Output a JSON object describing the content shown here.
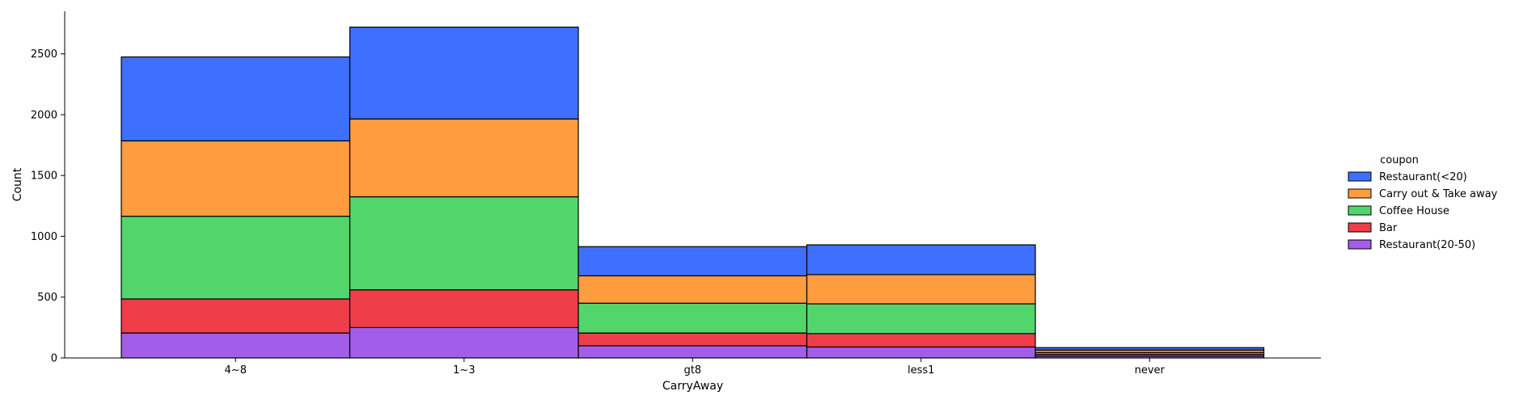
{
  "chart_data": {
    "type": "bar",
    "stacked": true,
    "title": "",
    "xlabel": "CarryAway",
    "ylabel": "Count",
    "categories": [
      "4~8",
      "1~3",
      "gt8",
      "less1",
      "never"
    ],
    "ylim": [
      0,
      2850
    ],
    "yticks": [
      0,
      500,
      1000,
      1500,
      2000,
      2500
    ],
    "grid": false,
    "legend": {
      "title": "coupon",
      "placement": "right"
    },
    "series": [
      {
        "name": "Restaurant(20-50)",
        "color": "#a25ee8",
        "values": [
          205,
          250,
          100,
          90,
          15
        ]
      },
      {
        "name": "Bar",
        "color": "#ef3e4a",
        "values": [
          280,
          310,
          105,
          110,
          15
        ]
      },
      {
        "name": "Coffee House",
        "color": "#52d66c",
        "values": [
          680,
          765,
          245,
          245,
          15
        ]
      },
      {
        "name": "Carry out & Take away",
        "color": "#ff9c3d",
        "values": [
          620,
          640,
          225,
          240,
          20
        ]
      },
      {
        "name": "Restaurant(<20)",
        "color": "#3f6ffd",
        "values": [
          690,
          755,
          240,
          245,
          20
        ]
      }
    ],
    "legend_order": [
      "Restaurant(<20)",
      "Carry out & Take away",
      "Coffee House",
      "Bar",
      "Restaurant(20-50)"
    ]
  }
}
